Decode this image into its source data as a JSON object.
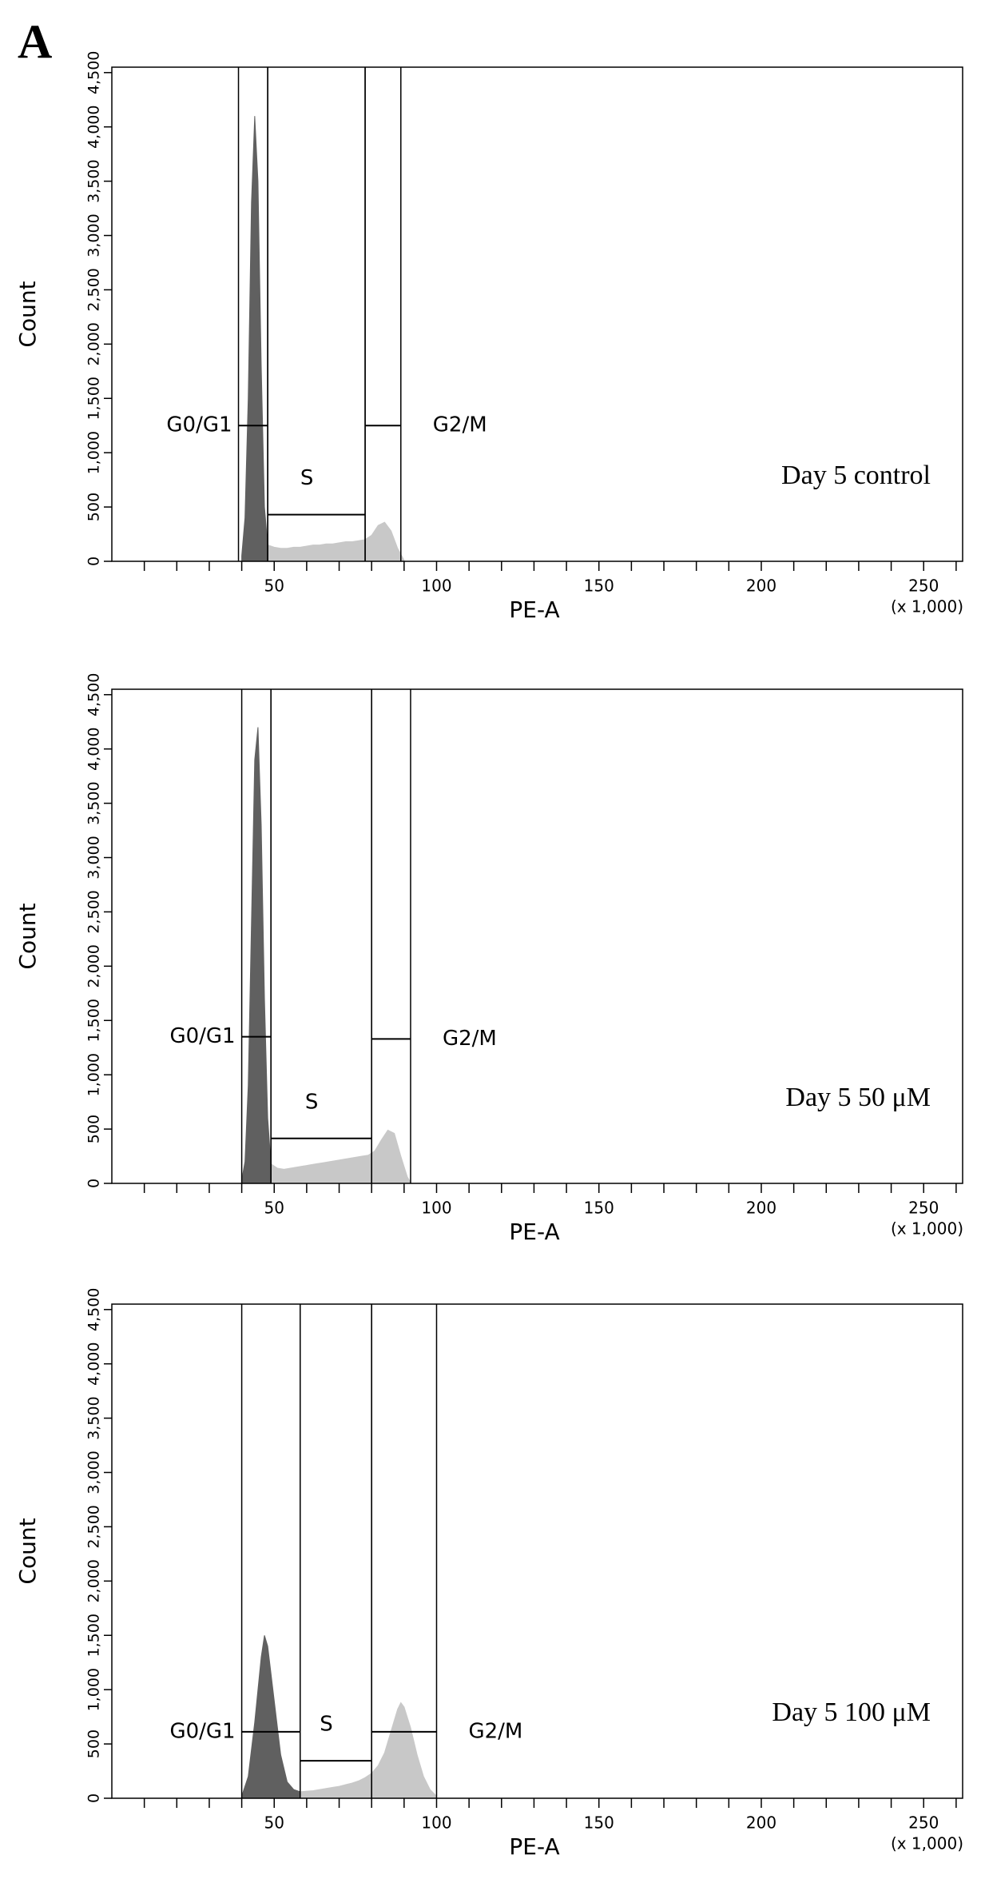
{
  "figure_label": "A",
  "chart_data": [
    {
      "type": "area",
      "annotation": "Day 5 control",
      "x_label": "PE-A",
      "x_unit_label": "(x 1,000)",
      "y_label": "Count",
      "xlim": [
        0,
        262
      ],
      "ylim": [
        0,
        4550
      ],
      "xticks": [
        50,
        100,
        150,
        200,
        250
      ],
      "xminorticks": [
        10,
        20,
        30,
        40,
        60,
        70,
        80,
        90,
        110,
        120,
        130,
        140,
        160,
        170,
        180,
        190,
        210,
        220,
        230,
        240,
        260
      ],
      "yticks": [
        0,
        500,
        {
          "value": 1000,
          "label": "1,000"
        },
        {
          "value": 1500,
          "label": "1,500"
        },
        {
          "value": 2000,
          "label": "2,000"
        },
        {
          "value": 2500,
          "label": "2,500"
        },
        {
          "value": 3000,
          "label": "3,000"
        },
        {
          "value": 3500,
          "label": "3,500"
        },
        {
          "value": 4000,
          "label": "4,000"
        },
        {
          "value": 4500,
          "label": "4,500"
        }
      ],
      "series": [
        {
          "color": "#606060",
          "x": [
            40,
            41,
            42,
            43,
            44,
            45,
            46,
            47,
            48
          ],
          "values": [
            50,
            400,
            1500,
            3300,
            4100,
            3500,
            1800,
            500,
            150
          ]
        },
        {
          "color": "#c8c8c8",
          "x": [
            48,
            50,
            52,
            54,
            56,
            58,
            60,
            62,
            64,
            66,
            68,
            70,
            72,
            74,
            76,
            78,
            80,
            82,
            84,
            86,
            88,
            90
          ],
          "values": [
            150,
            130,
            120,
            120,
            130,
            130,
            140,
            150,
            150,
            160,
            160,
            170,
            180,
            180,
            190,
            200,
            240,
            330,
            360,
            280,
            120,
            10
          ]
        }
      ],
      "gates": [
        {
          "label": "G0/G1",
          "x": [
            39,
            48
          ],
          "y": 1250
        },
        {
          "label": "S",
          "x": [
            48,
            78
          ],
          "y": 430
        },
        {
          "label": "G2/M",
          "x": [
            78,
            89
          ],
          "y": 1250
        }
      ]
    },
    {
      "type": "area",
      "annotation": "Day 5 50 μM",
      "x_label": "PE-A",
      "x_unit_label": "(x 1,000)",
      "y_label": "Count",
      "xlim": [
        0,
        262
      ],
      "ylim": [
        0,
        4550
      ],
      "xticks": [
        50,
        100,
        150,
        200,
        250
      ],
      "xminorticks": [
        10,
        20,
        30,
        40,
        60,
        70,
        80,
        90,
        110,
        120,
        130,
        140,
        160,
        170,
        180,
        190,
        210,
        220,
        230,
        240,
        260
      ],
      "yticks": [
        0,
        500,
        {
          "value": 1000,
          "label": "1,000"
        },
        {
          "value": 1500,
          "label": "1,500"
        },
        {
          "value": 2000,
          "label": "2,000"
        },
        {
          "value": 2500,
          "label": "2,500"
        },
        {
          "value": 3000,
          "label": "3,000"
        },
        {
          "value": 3500,
          "label": "3,500"
        },
        {
          "value": 4000,
          "label": "4,000"
        },
        {
          "value": 4500,
          "label": "4,500"
        }
      ],
      "series": [
        {
          "color": "#606060",
          "x": [
            40,
            41,
            42,
            43,
            44,
            45,
            46,
            47,
            48,
            49
          ],
          "values": [
            30,
            200,
            900,
            2400,
            3900,
            4200,
            3300,
            1700,
            600,
            180
          ]
        },
        {
          "color": "#c8c8c8",
          "x": [
            49,
            51,
            53,
            55,
            57,
            59,
            61,
            63,
            65,
            67,
            69,
            71,
            73,
            75,
            77,
            79,
            81,
            83,
            85,
            87,
            89,
            91,
            92
          ],
          "values": [
            180,
            140,
            130,
            140,
            150,
            160,
            170,
            180,
            190,
            200,
            210,
            220,
            230,
            240,
            250,
            260,
            300,
            400,
            490,
            460,
            250,
            60,
            10
          ]
        }
      ],
      "gates": [
        {
          "label": "G0/G1",
          "x": [
            40,
            49
          ],
          "y": 1350
        },
        {
          "label": "S",
          "x": [
            49,
            80
          ],
          "y": 414
        },
        {
          "label": "G2/M",
          "x": [
            80,
            92
          ],
          "y": 1330
        }
      ]
    },
    {
      "type": "area",
      "annotation": "Day 5 100 μM",
      "x_label": "PE-A",
      "x_unit_label": "(x 1,000)",
      "y_label": "Count",
      "xlim": [
        0,
        262
      ],
      "ylim": [
        0,
        4550
      ],
      "xticks": [
        50,
        100,
        150,
        200,
        250
      ],
      "xminorticks": [
        10,
        20,
        30,
        40,
        60,
        70,
        80,
        90,
        110,
        120,
        130,
        140,
        160,
        170,
        180,
        190,
        210,
        220,
        230,
        240,
        260
      ],
      "yticks": [
        0,
        500,
        {
          "value": 1000,
          "label": "1,000"
        },
        {
          "value": 1500,
          "label": "1,500"
        },
        {
          "value": 2000,
          "label": "2,000"
        },
        {
          "value": 2500,
          "label": "2,500"
        },
        {
          "value": 3000,
          "label": "3,000"
        },
        {
          "value": 3500,
          "label": "3,500"
        },
        {
          "value": 4000,
          "label": "4,000"
        },
        {
          "value": 4500,
          "label": "4,500"
        }
      ],
      "series": [
        {
          "color": "#606060",
          "x": [
            40,
            42,
            44,
            46,
            47,
            48,
            50,
            52,
            54,
            56,
            58
          ],
          "values": [
            20,
            200,
            700,
            1300,
            1500,
            1400,
            900,
            400,
            150,
            80,
            60
          ]
        },
        {
          "color": "#c8c8c8",
          "x": [
            58,
            60,
            62,
            64,
            66,
            68,
            70,
            72,
            74,
            76,
            78,
            80,
            82,
            84,
            86,
            88,
            89,
            90,
            92,
            94,
            96,
            98,
            100
          ],
          "values": [
            60,
            65,
            70,
            80,
            90,
            100,
            110,
            125,
            140,
            160,
            190,
            230,
            300,
            420,
            620,
            820,
            880,
            840,
            650,
            400,
            200,
            80,
            20
          ]
        }
      ],
      "gates": [
        {
          "label": "G0/G1",
          "x": [
            40,
            58
          ],
          "y": 612
        },
        {
          "label": "S",
          "x": [
            58,
            80
          ],
          "y": 345
        },
        {
          "label": "G2/M",
          "x": [
            80,
            100
          ],
          "y": 612
        }
      ]
    }
  ]
}
